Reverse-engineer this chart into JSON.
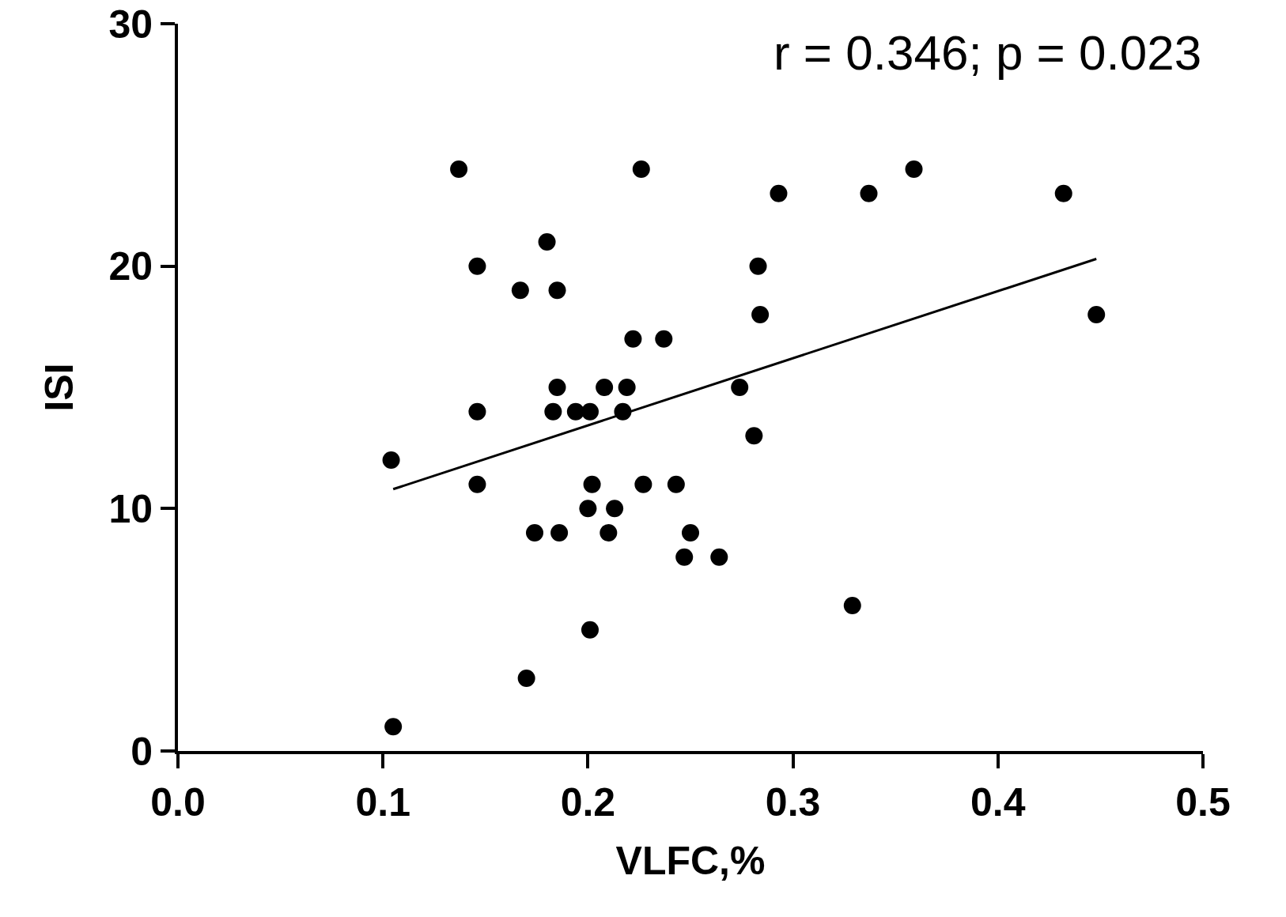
{
  "chart_data": {
    "type": "scatter",
    "xlabel": "VLFC,%",
    "ylabel": "ISI",
    "annotations": [
      "r = 0.346; p = 0.023"
    ],
    "xlim": [
      0,
      0.5
    ],
    "ylim": [
      0,
      30
    ],
    "xticks": [
      {
        "value": 0,
        "label": "0.0"
      },
      0.1,
      0.2,
      0.3,
      0.4,
      0.5
    ],
    "yticks": [
      0,
      10,
      20,
      30
    ],
    "grid": false,
    "marker": "circle",
    "series": [
      {
        "color": "#000000",
        "x": [
          0.105,
          0.104,
          0.137,
          0.146,
          0.146,
          0.146,
          0.167,
          0.18,
          0.185,
          0.185,
          0.183,
          0.174,
          0.186,
          0.17,
          0.201,
          0.194,
          0.201,
          0.208,
          0.202,
          0.2,
          0.213,
          0.21,
          0.219,
          0.217,
          0.222,
          0.226,
          0.227,
          0.237,
          0.243,
          0.25,
          0.247,
          0.264,
          0.274,
          0.281,
          0.283,
          0.284,
          0.293,
          0.329,
          0.337,
          0.359,
          0.432,
          0.448
        ],
        "values": [
          1,
          12,
          24,
          20,
          14,
          11,
          19,
          21,
          19,
          15,
          14,
          9,
          9,
          3,
          5,
          14,
          14,
          15,
          11,
          10,
          10,
          9,
          15,
          14,
          17,
          24,
          11,
          17,
          11,
          9,
          8,
          8,
          15,
          13,
          20,
          18,
          23,
          6,
          23,
          24,
          23,
          18
        ]
      },
      {
        "type": "line",
        "color": "#000000",
        "marker": "none",
        "line_style": "solid",
        "x": [
          0.105,
          0.448
        ],
        "values": [
          10.8,
          20.3
        ]
      }
    ]
  }
}
